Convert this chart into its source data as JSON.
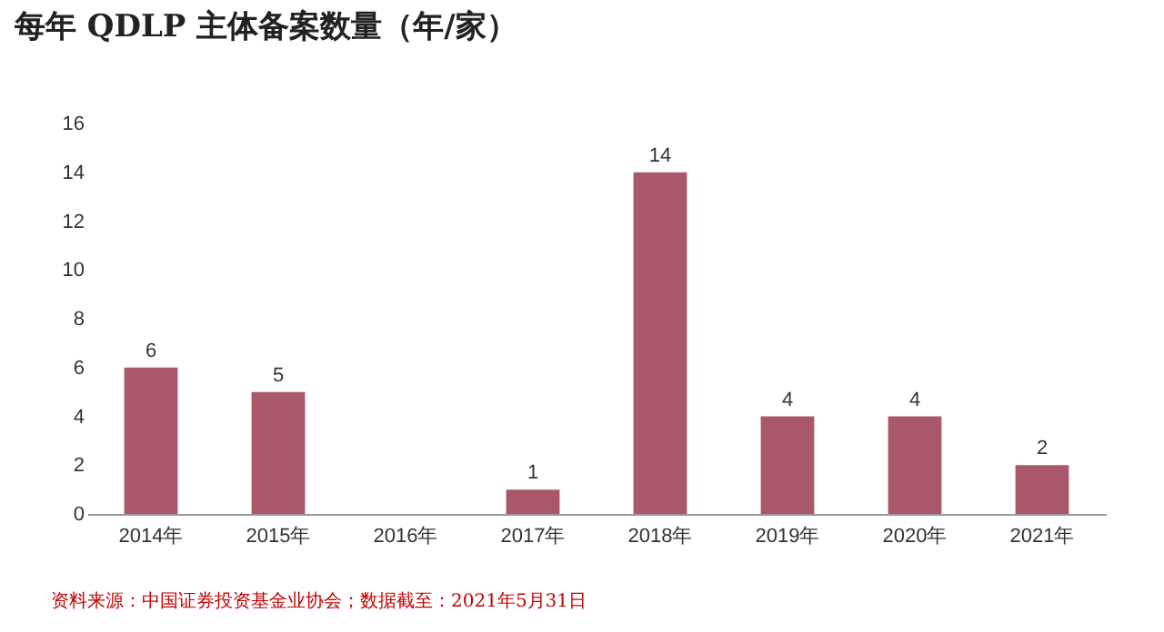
{
  "chart_data": {
    "type": "bar",
    "title": "每年 QDLP 主体备案数量（年/家）",
    "categories": [
      "2014年",
      "2015年",
      "2016年",
      "2017年",
      "2018年",
      "2019年",
      "2020年",
      "2021年"
    ],
    "values": [
      6,
      5,
      0,
      1,
      14,
      4,
      4,
      2
    ],
    "value_labels": [
      "6",
      "5",
      null,
      "1",
      "14",
      "4",
      "4",
      "2"
    ],
    "color": "#a85868",
    "ylim": [
      0,
      16
    ],
    "yticks": [
      0,
      2,
      4,
      6,
      8,
      10,
      12,
      14,
      16
    ],
    "annotations": [
      "资料来源：中国证券投资基金业协会；数据截至：2021年5月31日"
    ]
  }
}
